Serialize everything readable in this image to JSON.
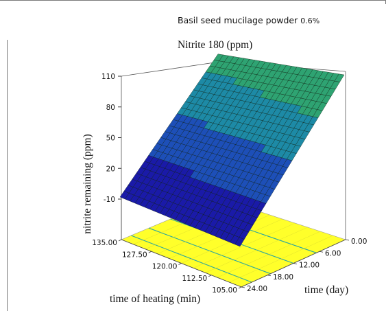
{
  "super_title": {
    "text": "Basil seed mucilage powder",
    "value": "0.6%"
  },
  "chart_data": {
    "type": "surface3d",
    "title": "Nitrite 180 (ppm)",
    "zlabel": "nitrite remaining (ppm)",
    "xlabel": "time of heating (min)",
    "ylabel": "time (day)",
    "x_ticks": [
      "105.00",
      "112.50",
      "120.00",
      "127.50",
      "135.00"
    ],
    "y_ticks": [
      "0.00",
      "6.00",
      "12.00",
      "18.00",
      "24.00"
    ],
    "z_ticks": [
      "-10",
      "20",
      "50",
      "80",
      "110"
    ],
    "x_range": [
      105,
      135
    ],
    "y_range": [
      0,
      24
    ],
    "z_range": [
      -10,
      110
    ],
    "corner_values": [
      {
        "heating_min": 105,
        "time_day": 0,
        "nitrite_ppm": 110
      },
      {
        "heating_min": 105,
        "time_day": 24,
        "nitrite_ppm": -12
      },
      {
        "heating_min": 135,
        "time_day": 0,
        "nitrite_ppm": 90
      },
      {
        "heating_min": 135,
        "time_day": 24,
        "nitrite_ppm": -10
      }
    ],
    "surface_colormap": [
      "#1a1aa8",
      "#1d4fb8",
      "#1d8aa6",
      "#2ea372",
      "#3fae3a"
    ],
    "contour_plane_color": "#ffff2a",
    "contour_line_color": "#2aa6a0"
  }
}
